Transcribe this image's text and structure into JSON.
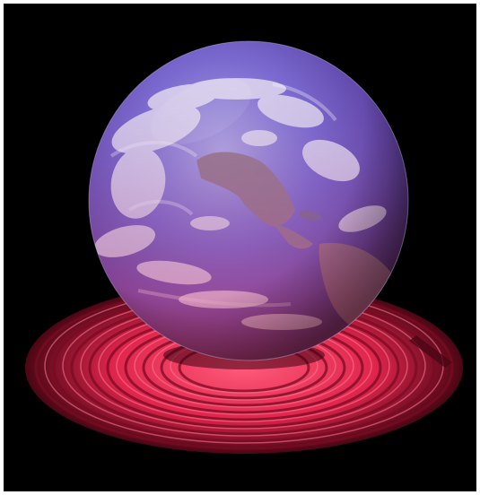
{
  "scene": {
    "subject": "earth-globe-on-glowing-coil",
    "colors": {
      "background": "#000000",
      "frame": "#ffffff",
      "ocean": "#5a4fb0",
      "land": "#8a6a7a",
      "clouds": "#f2eef7",
      "globe_tint": "#8a5cc4",
      "coil_glow": "#ff2a55",
      "coil_dark": "#6a0a1e"
    }
  }
}
